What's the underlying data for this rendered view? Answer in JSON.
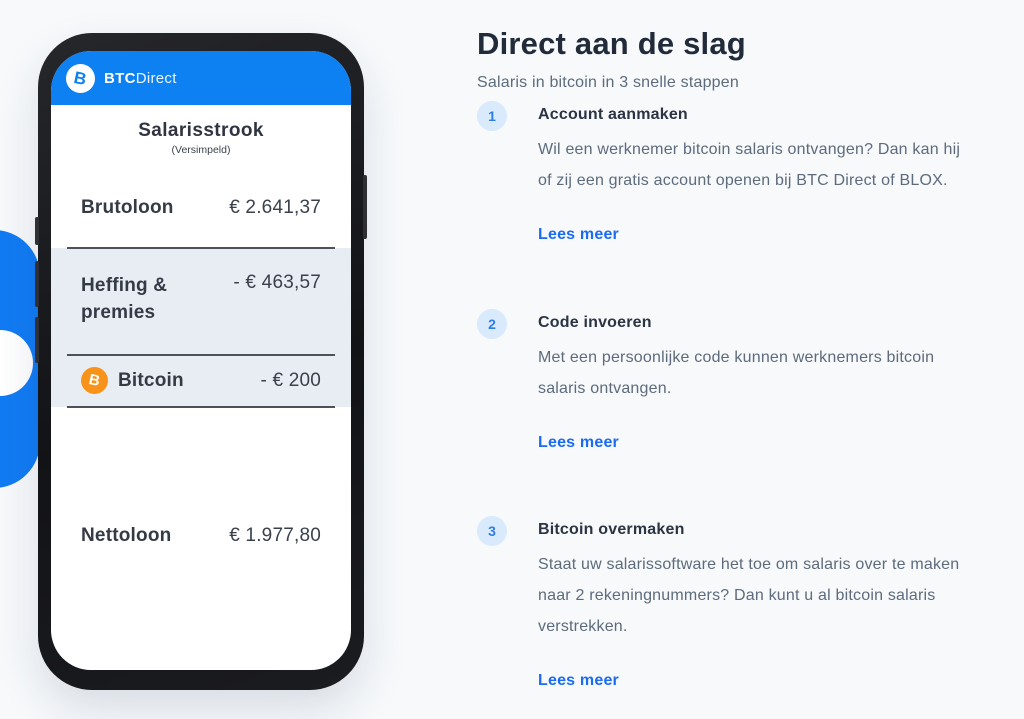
{
  "colors": {
    "brand_blue": "#0e81f2",
    "bitcoin_orange": "#f7931a",
    "link_blue": "#1c6cf2",
    "shaded_row": "#e8edf4"
  },
  "phone": {
    "logo": {
      "bold": "BTC",
      "regular": "Direct",
      "icon": "btc-direct-circle-icon"
    },
    "payslip": {
      "title": "Salarisstrook",
      "subtitle": "(Versimpeld)",
      "rows": [
        {
          "label": "Brutoloon",
          "value": "€ 2.641,37"
        },
        {
          "label": "Heffing & premies",
          "value": "- € 463,57"
        },
        {
          "label": "Bitcoin",
          "value": "- € 200",
          "icon": "bitcoin-icon"
        },
        {
          "label": "Nettoloon",
          "value": "€ 1.977,80"
        }
      ]
    }
  },
  "section": {
    "title": "Direct aan de slag",
    "subtitle": "Salaris in bitcoin in 3 snelle stappen",
    "steps": [
      {
        "number": "1",
        "title": "Account aanmaken",
        "body": "Wil een werknemer bitcoin salaris ontvangen? Dan kan hij of zij een gratis account openen bij BTC Direct of BLOX.",
        "link": "Lees meer"
      },
      {
        "number": "2",
        "title": "Code invoeren",
        "body": "Met een persoonlijke code kunnen werknemers bitcoin salaris ontvangen.",
        "link": "Lees meer"
      },
      {
        "number": "3",
        "title": "Bitcoin overmaken",
        "body": "Staat uw salarissoftware het toe om salaris over te maken naar 2 rekeningnummers? Dan kunt u al bitcoin salaris verstrekken.",
        "link": "Lees meer"
      }
    ]
  }
}
